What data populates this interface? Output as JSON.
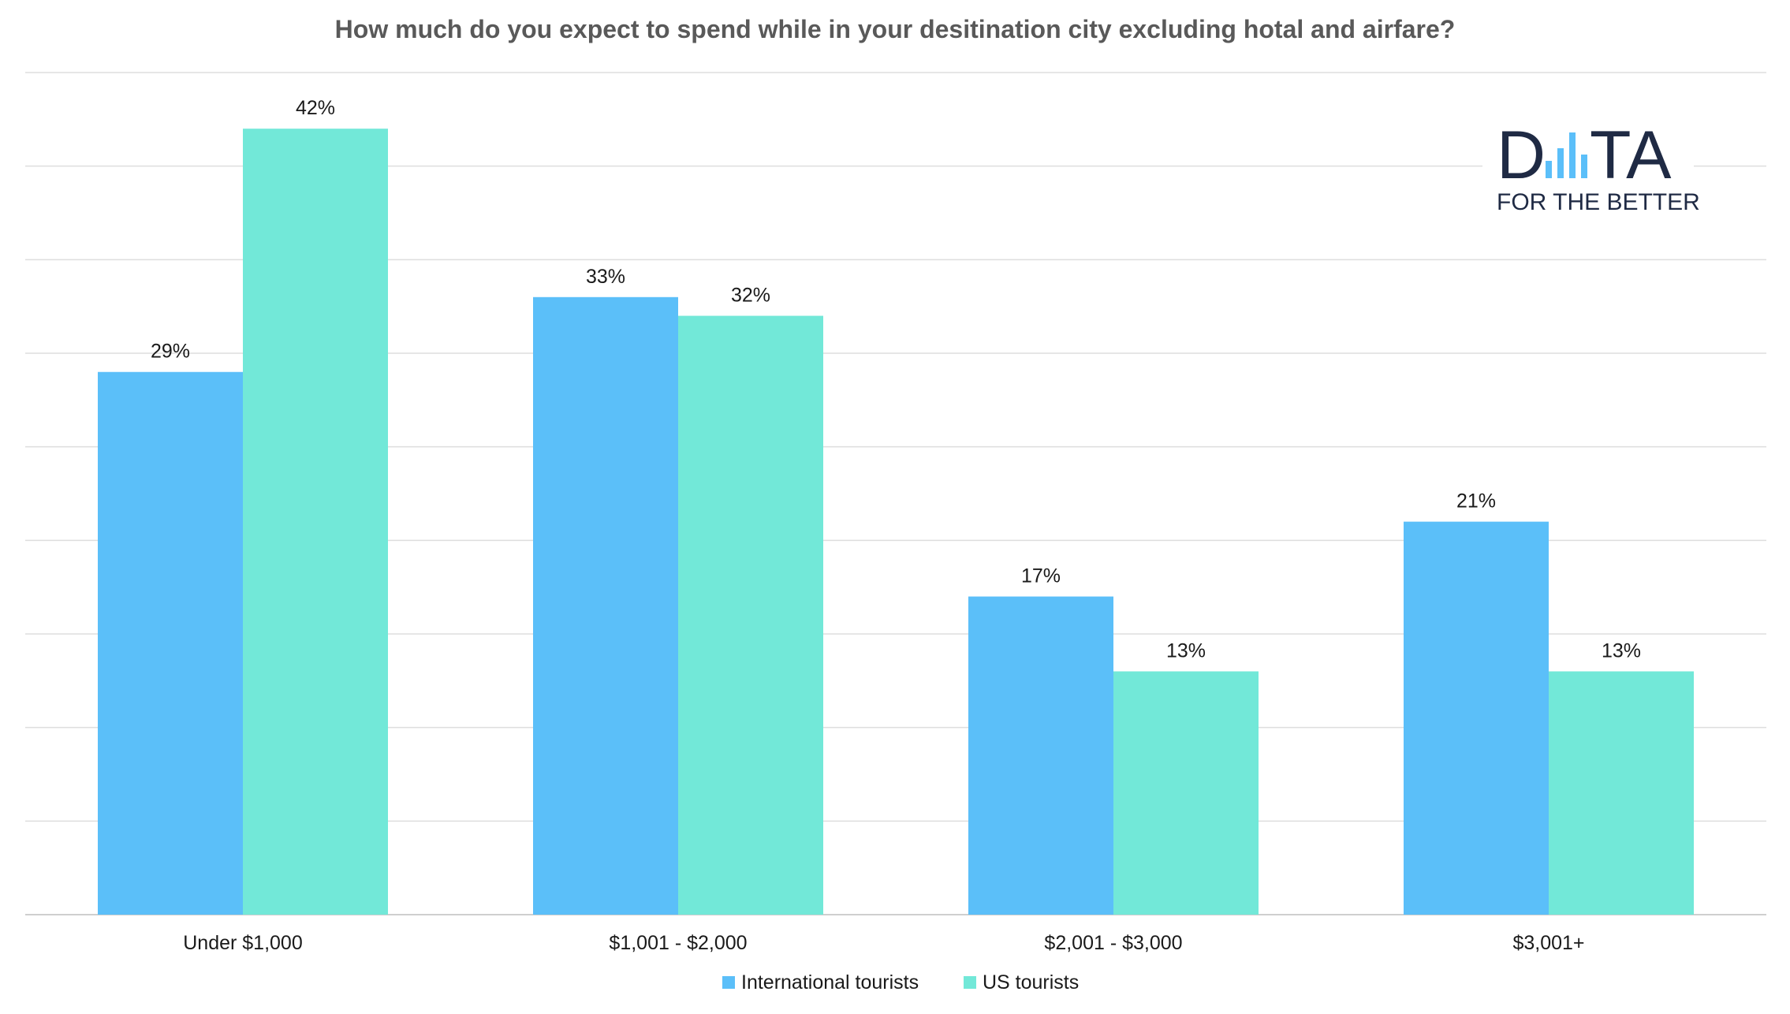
{
  "chart_data": {
    "type": "bar",
    "title": "How much do you expect to spend while in your desitination city excluding hotal and airfare?",
    "xlabel": "",
    "ylabel": "",
    "categories": [
      "Under $1,000",
      "$1,001 - $2,000",
      "$2,001 - $3,000",
      "$3,001+"
    ],
    "series": [
      {
        "name": "International tourists",
        "values": [
          29,
          33,
          17,
          21
        ],
        "labels": [
          "29%",
          "33%",
          "17%",
          "21%"
        ],
        "color": "#5bbff9"
      },
      {
        "name": "US tourists",
        "values": [
          42,
          32,
          13,
          13
        ],
        "labels": [
          "42%",
          "32%",
          "13%",
          "13%"
        ],
        "color": "#72e8d8"
      }
    ],
    "ylim": [
      0,
      45
    ],
    "grid": true,
    "legend_position": "bottom"
  },
  "logo": {
    "letter_d": "D",
    "letters_ta": "TA",
    "tagline": "FOR THE BETTER",
    "accent_color": "#5bbff9"
  }
}
